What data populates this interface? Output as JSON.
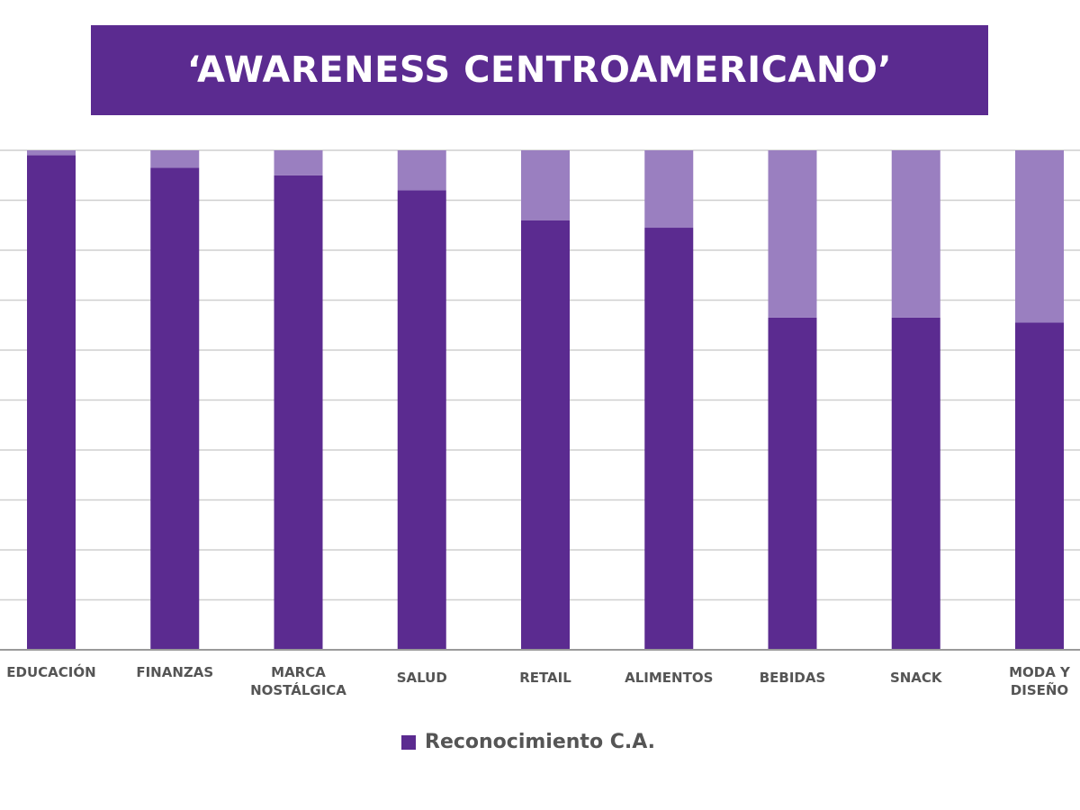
{
  "chart_data": {
    "type": "bar",
    "stacked": true,
    "title": "‘AWARENESS CENTROAMERICANO’",
    "categories": [
      "EDUCACIÓN",
      "FINANZAS",
      "MARCA NOSTÁLGICA",
      "SALUD",
      "RETAIL",
      "ALIMENTOS",
      "BEBIDAS",
      "SNACK",
      "MODA Y DISEÑO"
    ],
    "category_lines": [
      [
        "EDUCACIÓN"
      ],
      [
        "FINANZAS"
      ],
      [
        "MARCA",
        "NOSTÁLGICA"
      ],
      [
        "SALUD"
      ],
      [
        "RETAIL"
      ],
      [
        "ALIMENTOS"
      ],
      [
        "BEBIDAS"
      ],
      [
        "SNACK"
      ],
      [
        "MODA Y",
        "DISEÑO"
      ]
    ],
    "series": [
      {
        "name": "Reconocimiento C.A.",
        "color": "#5b2b90",
        "values": [
          99,
          96.5,
          95,
          92,
          86,
          84.5,
          66.5,
          66.5,
          65.5
        ]
      },
      {
        "color": "#9a7fc0",
        "values": [
          1,
          3.5,
          5,
          8,
          14,
          15.5,
          33.5,
          33.5,
          34.5
        ]
      }
    ],
    "ylim": [
      0,
      100
    ],
    "grid": true,
    "legend_position": "bottom-center",
    "xlabel": "",
    "ylabel": ""
  }
}
